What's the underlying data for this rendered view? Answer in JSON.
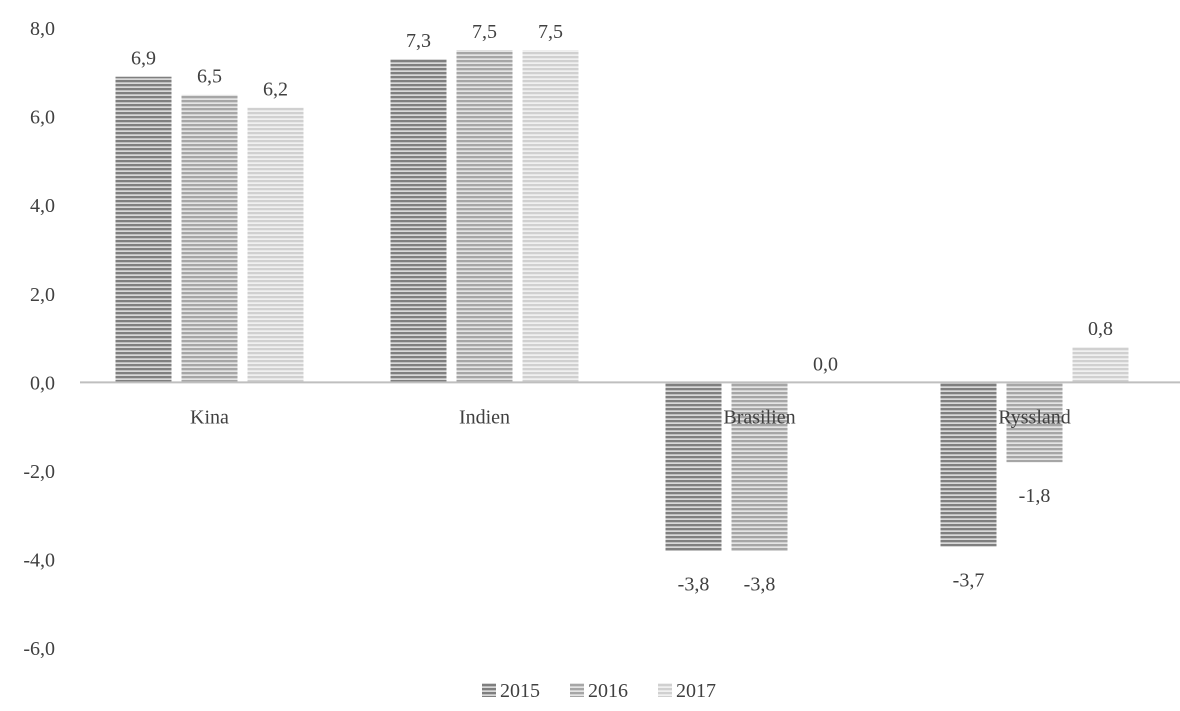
{
  "chart_data": {
    "type": "bar",
    "title": "",
    "xlabel": "",
    "ylabel": "",
    "categories": [
      "Kina",
      "Indien",
      "Brasilien",
      "Ryssland"
    ],
    "series": [
      {
        "name": "2015",
        "values": [
          6.9,
          7.3,
          -3.8,
          -3.7
        ],
        "labels": [
          "6,9",
          "7,3",
          "-3,8",
          "-3,7"
        ],
        "color": "#7f7f7f"
      },
      {
        "name": "2016",
        "values": [
          6.5,
          7.5,
          -3.8,
          -1.8
        ],
        "labels": [
          "6,5",
          "7,5",
          "-3,8",
          "-1,8"
        ],
        "color": "#a6a6a6"
      },
      {
        "name": "2017",
        "values": [
          6.2,
          7.5,
          0.0,
          0.8
        ],
        "labels": [
          "6,2",
          "7,5",
          "0,0",
          "0,8"
        ],
        "color": "#d0d0d0"
      }
    ],
    "ylim": [
      -6,
      8
    ],
    "yticks": [
      8,
      6,
      4,
      2,
      0,
      -2,
      -4,
      -6
    ],
    "ytick_labels": [
      "8,0",
      "6,0",
      "4,0",
      "2,0",
      "0,0",
      "-2,0",
      "-4,0",
      "-6,0"
    ],
    "grid": false,
    "legend_position": "bottom",
    "axis_color": "#bfbfbf",
    "stripe_color": "#ffffff"
  }
}
